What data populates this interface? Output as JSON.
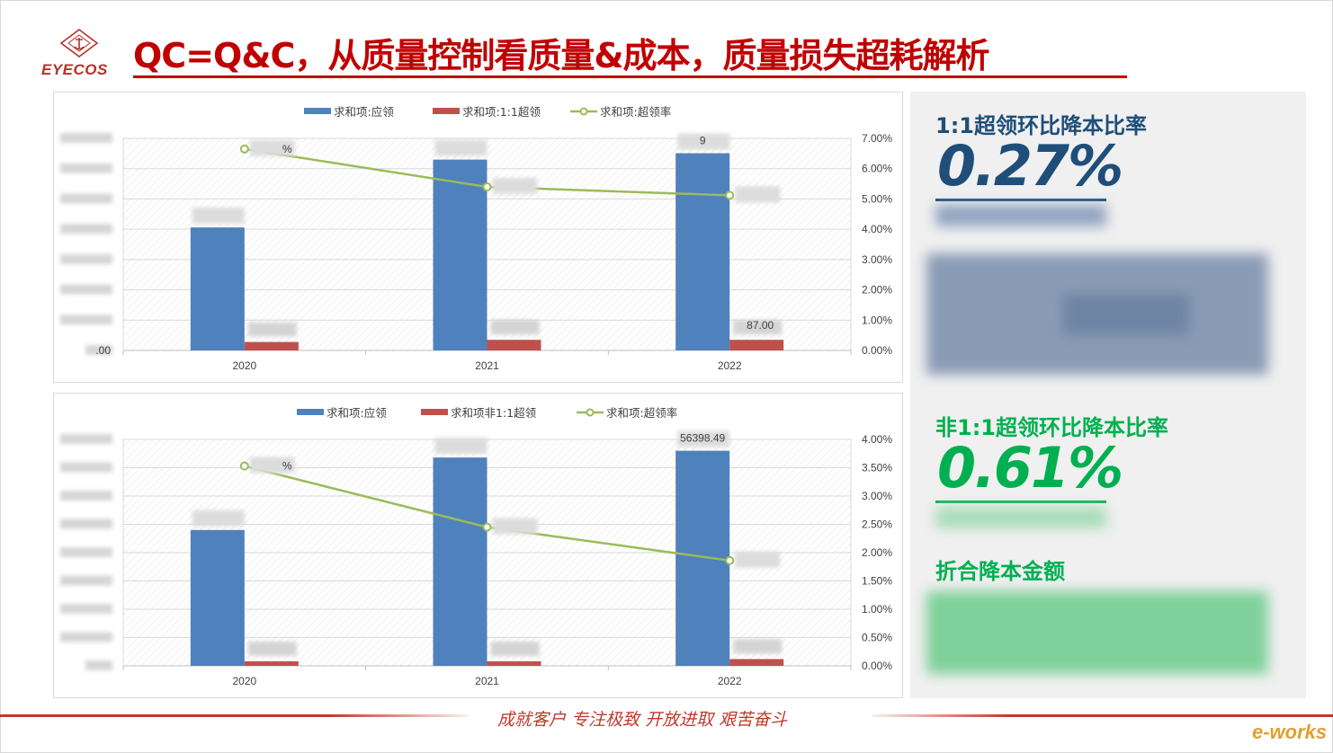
{
  "header": {
    "logo_text": "EYECOS",
    "title": "QC=Q&C，从质量控制看质量&成本，质量损失超耗解析"
  },
  "chart_data": [
    {
      "type": "bar",
      "categories": [
        "2020",
        "2021",
        "2022"
      ],
      "series": [
        {
          "name": "求和项:应领",
          "kind": "bar",
          "axis": "left",
          "values": [
            0.58,
            0.9,
            0.93
          ]
        },
        {
          "name": "求和项:1:1超领",
          "kind": "bar",
          "axis": "left",
          "values": [
            0.04,
            0.05,
            0.05
          ]
        },
        {
          "name": "求和项:超领率",
          "kind": "line",
          "axis": "right",
          "values": [
            6.65,
            5.4,
            5.12
          ]
        }
      ],
      "right_axis_ticks": [
        "0.00%",
        "1.00%",
        "2.00%",
        "3.00%",
        "4.00%",
        "5.00%",
        "6.00%",
        "7.00%"
      ],
      "ylim_right": [
        0,
        7
      ],
      "ylim_left": [
        0,
        1
      ],
      "left_axis_label_bottom": ".00",
      "bar_labels_2": [
        null,
        null,
        "87.00"
      ],
      "bar_labels_1": [
        null,
        null,
        "9"
      ],
      "line_labels": [
        "%",
        null,
        null
      ]
    },
    {
      "type": "bar",
      "categories": [
        "2020",
        "2021",
        "2022"
      ],
      "series": [
        {
          "name": "求和项:应领",
          "kind": "bar",
          "axis": "left",
          "values": [
            0.6,
            0.92,
            0.95
          ]
        },
        {
          "name": "求和项非1:1超领",
          "kind": "bar",
          "axis": "left",
          "values": [
            0.02,
            0.02,
            0.03
          ]
        },
        {
          "name": "求和项:超领率",
          "kind": "line",
          "axis": "right",
          "values": [
            3.53,
            2.45,
            1.86
          ]
        }
      ],
      "right_axis_ticks": [
        "0.00%",
        "0.50%",
        "1.00%",
        "1.50%",
        "2.00%",
        "2.50%",
        "3.00%",
        "3.50%",
        "4.00%"
      ],
      "ylim_right": [
        0,
        4
      ],
      "ylim_left": [
        0,
        1
      ],
      "left_axis_label_bottom": "",
      "bar_labels_1": [
        null,
        null,
        "56398.49"
      ],
      "line_labels": [
        "%",
        null,
        null
      ]
    }
  ],
  "kpis": {
    "k1": {
      "label": "1:1超领环比降本比率",
      "value": "0.27%",
      "color": "#1f4e79"
    },
    "k2": {
      "label": "非1:1超领环比降本比率",
      "value": "0.61%",
      "color": "#00b050"
    },
    "k3": {
      "label": "折合降本金额",
      "color": "#00b050"
    }
  },
  "footer": {
    "motto": "成就客户 专注极致 开放进取 艰苦奋斗",
    "brand": "e-works"
  },
  "colors": {
    "bar_blue": "#4f81bd",
    "bar_red": "#c0504d",
    "line_green": "#9bbb59"
  }
}
